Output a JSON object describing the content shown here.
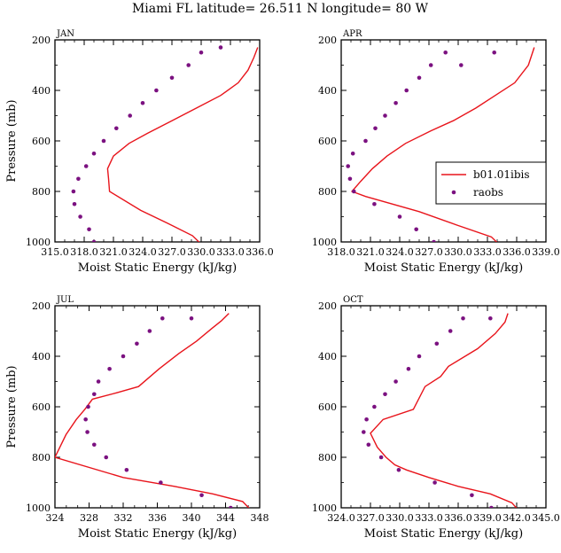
{
  "figure_title": "Miami FL  latitude= 26.511 N longitude= 80 W",
  "chart_data": [
    {
      "type": "line",
      "panel_label": "JAN",
      "xlabel": "Moist Static Energy (kJ/kg)",
      "ylabel": "Pressure (mb)",
      "xlim": [
        315.0,
        336.0
      ],
      "ylim": [
        1000,
        200
      ],
      "xticks": [
        315.0,
        318.0,
        321.0,
        324.0,
        327.0,
        330.0,
        333.0,
        336.0
      ],
      "xtick_labels": [
        "315.0",
        "318.0",
        "321.0",
        "324.0",
        "327.0",
        "330.0",
        "333.0",
        "336.0"
      ],
      "yticks": [
        200,
        400,
        600,
        800,
        1000
      ],
      "ytick_labels": [
        "200",
        "400",
        "600",
        "800",
        "1000"
      ],
      "series": [
        {
          "name": "b01.01ibis",
          "style": "line",
          "color": "#e8141b",
          "x": [
            329.9,
            329.1,
            326.5,
            323.8,
            320.6,
            320.5,
            320.4,
            321.0,
            322.6,
            324.5,
            327.0,
            329.5,
            332.0,
            333.8,
            334.8,
            335.4,
            335.8
          ],
          "y": [
            1005,
            975,
            925,
            875,
            800,
            750,
            710,
            660,
            610,
            570,
            520,
            470,
            420,
            370,
            320,
            270,
            230
          ]
        },
        {
          "name": "raobs",
          "style": "scatter",
          "color": "#7b1180",
          "x": [
            319.0,
            318.5,
            317.6,
            317.0,
            316.9,
            317.4,
            318.2,
            319.0,
            320.0,
            321.3,
            322.7,
            324.0,
            325.4,
            327.0,
            328.7,
            330.0,
            332.0
          ],
          "y": [
            1000,
            950,
            900,
            850,
            800,
            750,
            700,
            650,
            600,
            550,
            500,
            450,
            400,
            350,
            300,
            250,
            230
          ]
        }
      ]
    },
    {
      "type": "line",
      "panel_label": "APR",
      "xlabel": "Moist Static Energy (kJ/kg)",
      "ylabel": "",
      "xlim": [
        318.0,
        339.0
      ],
      "ylim": [
        1000,
        200
      ],
      "xticks": [
        318.0,
        321.0,
        324.0,
        327.0,
        330.0,
        333.0,
        336.0,
        339.0
      ],
      "xtick_labels": [
        "318.0",
        "321.0",
        "324.0",
        "327.0",
        "330.0",
        "333.0",
        "336.0",
        "339.0"
      ],
      "yticks": [
        200,
        400,
        600,
        800,
        1000
      ],
      "ytick_labels": [
        "200",
        "400",
        "600",
        "800",
        "1000"
      ],
      "legend_position": "mid-right",
      "series": [
        {
          "name": "b01.01ibis",
          "style": "line",
          "color": "#e8141b",
          "x": [
            334.2,
            333.4,
            330.0,
            326.0,
            320.5,
            319.1,
            320.0,
            321.2,
            322.7,
            324.6,
            327.2,
            329.5,
            331.8,
            333.8,
            335.8,
            337.2,
            337.8
          ],
          "y": [
            1010,
            980,
            935,
            880,
            820,
            800,
            760,
            710,
            660,
            610,
            560,
            520,
            470,
            420,
            370,
            300,
            230
          ]
        },
        {
          "name": "raobs",
          "style": "scatter",
          "color": "#7b1180",
          "x": [
            327.5,
            325.7,
            324.0,
            321.4,
            319.3,
            318.9,
            318.7,
            319.2,
            320.5,
            321.5,
            322.5,
            323.6,
            324.7,
            326.0,
            327.2,
            328.7,
            330.3,
            333.7
          ],
          "y": [
            1000,
            950,
            900,
            850,
            800,
            750,
            700,
            650,
            600,
            550,
            500,
            450,
            400,
            350,
            300,
            250,
            300,
            250
          ]
        }
      ]
    },
    {
      "type": "line",
      "panel_label": "JUL",
      "xlabel": "Moist Static Energy (kJ/kg)",
      "ylabel": "Pressure (mb)",
      "xlim": [
        324,
        348
      ],
      "ylim": [
        1000,
        200
      ],
      "xticks": [
        324,
        328,
        332,
        336,
        340,
        344,
        348
      ],
      "xtick_labels": [
        "324",
        "328",
        "332",
        "336",
        "340",
        "344",
        "348"
      ],
      "yticks": [
        200,
        400,
        600,
        800,
        1000
      ],
      "ytick_labels": [
        "200",
        "400",
        "600",
        "800",
        "1000"
      ],
      "series": [
        {
          "name": "b01.01ibis",
          "style": "line",
          "color": "#e8141b",
          "x": [
            347.0,
            346.0,
            342.5,
            338.0,
            332.0,
            324.0,
            325.3,
            326.5,
            327.5,
            328.4,
            331.2,
            333.8,
            336.2,
            338.5,
            340.6,
            342.4,
            343.5,
            344.4
          ],
          "y": [
            1010,
            975,
            945,
            915,
            880,
            800,
            710,
            650,
            610,
            570,
            545,
            520,
            450,
            390,
            340,
            290,
            260,
            230
          ]
        },
        {
          "name": "raobs",
          "style": "scatter",
          "color": "#7b1180",
          "x": [
            344.6,
            341.2,
            336.4,
            332.4,
            330.0,
            328.6,
            327.8,
            327.6,
            327.9,
            328.6,
            329.1,
            330.4,
            332.0,
            333.6,
            335.1,
            336.6,
            340.0
          ],
          "y": [
            1000,
            950,
            900,
            850,
            800,
            750,
            700,
            650,
            600,
            550,
            500,
            450,
            400,
            350,
            300,
            250,
            250
          ]
        }
      ]
    },
    {
      "type": "line",
      "panel_label": "OCT",
      "xlabel": "Moist Static Energy (kJ/kg)",
      "ylabel": "",
      "xlim": [
        324.0,
        345.0
      ],
      "ylim": [
        1000,
        200
      ],
      "xticks": [
        324.0,
        327.0,
        330.0,
        333.0,
        336.0,
        339.0,
        342.0,
        345.0
      ],
      "xtick_labels": [
        "324.0",
        "327.0",
        "330.0",
        "333.0",
        "336.0",
        "339.0",
        "342.0",
        "345.0"
      ],
      "yticks": [
        200,
        400,
        600,
        800,
        1000
      ],
      "ytick_labels": [
        "200",
        "400",
        "600",
        "800",
        "1000"
      ],
      "series": [
        {
          "name": "b01.01ibis",
          "style": "line",
          "color": "#e8141b",
          "x": [
            342.2,
            341.5,
            339.3,
            336.0,
            333.0,
            330.7,
            329.5,
            328.6,
            327.7,
            327.0,
            328.3,
            331.4,
            332.6,
            334.2,
            335.0,
            338.0,
            339.8,
            340.8,
            341.1
          ],
          "y": [
            1010,
            980,
            945,
            915,
            880,
            850,
            830,
            800,
            760,
            705,
            650,
            610,
            520,
            480,
            440,
            370,
            310,
            265,
            230
          ]
        },
        {
          "name": "raobs",
          "style": "scatter",
          "color": "#7b1180",
          "x": [
            339.4,
            337.4,
            333.6,
            329.9,
            328.1,
            326.8,
            326.3,
            326.6,
            327.4,
            328.5,
            329.6,
            330.9,
            332.0,
            333.8,
            335.2,
            336.5,
            339.3
          ],
          "y": [
            1000,
            950,
            900,
            850,
            800,
            750,
            700,
            650,
            600,
            550,
            500,
            450,
            400,
            350,
            300,
            250,
            250
          ]
        }
      ]
    }
  ]
}
